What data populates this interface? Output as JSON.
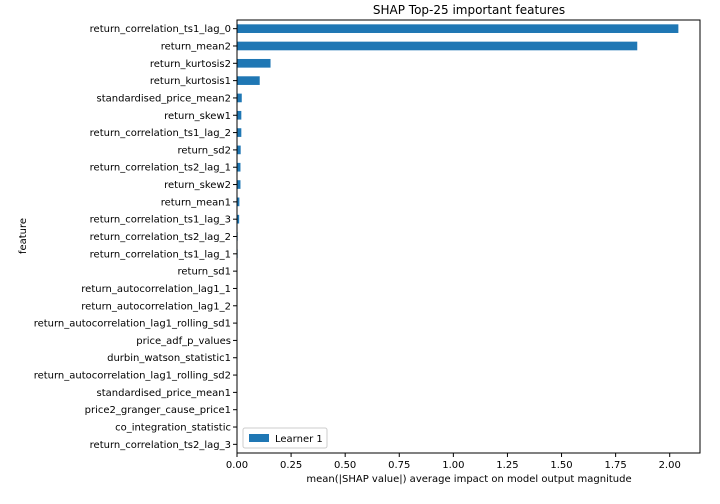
{
  "chart_data": {
    "type": "bar",
    "orientation": "horizontal",
    "title": "SHAP Top-25 important features",
    "xlabel": "mean(|SHAP value|) average impact on model output magnitude",
    "ylabel": "feature",
    "xlim": [
      0,
      2.14
    ],
    "xticks": [
      "0.00",
      "0.25",
      "0.50",
      "0.75",
      "1.00",
      "1.25",
      "1.50",
      "1.75",
      "2.00"
    ],
    "xtick_values": [
      0,
      0.25,
      0.5,
      0.75,
      1.0,
      1.25,
      1.5,
      1.75,
      2.0
    ],
    "grid": false,
    "legend_position": "lower-left",
    "categories": [
      "return_correlation_ts1_lag_0",
      "return_mean2",
      "return_kurtosis2",
      "return_kurtosis1",
      "standardised_price_mean2",
      "return_skew1",
      "return_correlation_ts1_lag_2",
      "return_sd2",
      "return_correlation_ts2_lag_1",
      "return_skew2",
      "return_mean1",
      "return_correlation_ts1_lag_3",
      "return_correlation_ts2_lag_2",
      "return_correlation_ts1_lag_1",
      "return_sd1",
      "return_autocorrelation_lag1_1",
      "return_autocorrelation_lag1_2",
      "return_autocorrelation_lag1_rolling_sd1",
      "price_adf_p_values",
      "durbin_watson_statistic1",
      "return_autocorrelation_lag1_rolling_sd2",
      "standardised_price_mean1",
      "price2_granger_cause_price1",
      "co_integration_statistic",
      "return_correlation_ts2_lag_3"
    ],
    "series": [
      {
        "name": "Learner 1",
        "color": "#1f77b4",
        "values": [
          2.04,
          1.85,
          0.155,
          0.105,
          0.022,
          0.02,
          0.02,
          0.017,
          0.016,
          0.016,
          0.011,
          0.01,
          0.003,
          0.003,
          0.002,
          0.002,
          0.002,
          0.001,
          0.001,
          0.001,
          0.001,
          0.001,
          0.0005,
          0.0005,
          0.0005
        ]
      }
    ]
  }
}
